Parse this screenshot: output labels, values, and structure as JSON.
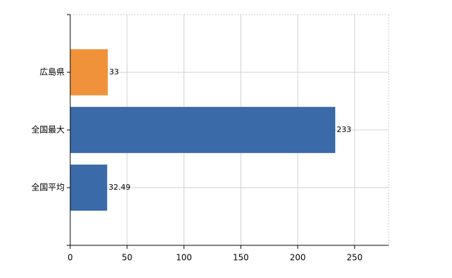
{
  "chart_data": {
    "type": "barh",
    "categories": [
      "広島県",
      "全国最大",
      "全国平均"
    ],
    "values": [
      33,
      233,
      32.49
    ],
    "colors": [
      "#f0923a",
      "#3a6aa8",
      "#3a6aa8"
    ],
    "xlim": [
      0,
      280
    ],
    "xticks": [
      0,
      50,
      100,
      150,
      200,
      250
    ],
    "grid": true
  }
}
